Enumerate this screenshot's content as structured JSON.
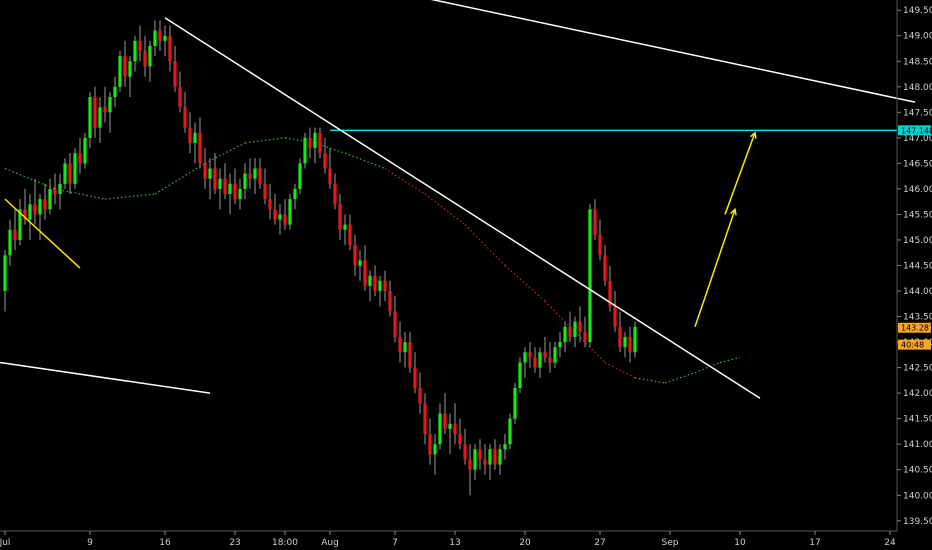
{
  "chart_data": {
    "type": "candlestick",
    "y_ticks": [
      "149.500",
      "149.000",
      "148.500",
      "148.000",
      "147.500",
      "147.000",
      "146.500",
      "146.000",
      "145.500",
      "145.000",
      "144.500",
      "144.000",
      "143.500",
      "143.000",
      "142.500",
      "142.000",
      "141.500",
      "141.000",
      "140.500",
      "140.000",
      "139.500"
    ],
    "y_range": [
      139.3,
      149.7
    ],
    "x_ticks": [
      {
        "label": "Jul",
        "i": 0
      },
      {
        "label": "9",
        "i": 17
      },
      {
        "label": "16",
        "i": 32
      },
      {
        "label": "23",
        "i": 46
      },
      {
        "label": "18:00",
        "i": 56
      },
      {
        "label": "Aug",
        "i": 65
      },
      {
        "label": "7",
        "i": 78
      },
      {
        "label": "13",
        "i": 90
      },
      {
        "label": "20",
        "i": 104
      },
      {
        "label": "27",
        "i": 119
      },
      {
        "label": "Sep",
        "i": 133
      },
      {
        "label": "10",
        "i": 147
      },
      {
        "label": "17",
        "i": 162
      },
      {
        "label": "24",
        "i": 177
      }
    ],
    "candles": [
      [
        144.0,
        144.8,
        143.6,
        144.7
      ],
      [
        144.7,
        145.4,
        144.5,
        145.2
      ],
      [
        145.2,
        145.6,
        144.8,
        145.0
      ],
      [
        145.0,
        145.8,
        144.9,
        145.6
      ],
      [
        145.6,
        146.0,
        145.3,
        145.4
      ],
      [
        145.4,
        145.9,
        145.0,
        145.7
      ],
      [
        145.7,
        146.2,
        145.3,
        145.5
      ],
      [
        145.5,
        145.9,
        145.0,
        145.8
      ],
      [
        145.8,
        146.1,
        145.4,
        145.6
      ],
      [
        145.6,
        146.2,
        145.5,
        146.0
      ],
      [
        146.0,
        146.3,
        145.7,
        145.9
      ],
      [
        145.9,
        146.3,
        145.6,
        146.1
      ],
      [
        146.1,
        146.6,
        146.0,
        146.5
      ],
      [
        146.5,
        146.7,
        145.9,
        146.1
      ],
      [
        146.1,
        146.8,
        146.0,
        146.7
      ],
      [
        146.7,
        147.0,
        146.3,
        146.5
      ],
      [
        146.5,
        147.1,
        146.4,
        147.0
      ],
      [
        147.0,
        147.9,
        146.8,
        147.8
      ],
      [
        147.8,
        148.0,
        147.0,
        147.2
      ],
      [
        147.2,
        147.8,
        146.9,
        147.6
      ],
      [
        147.6,
        148.0,
        147.3,
        147.5
      ],
      [
        147.5,
        147.9,
        147.1,
        147.8
      ],
      [
        147.8,
        148.2,
        147.6,
        148.0
      ],
      [
        148.0,
        148.7,
        147.9,
        148.6
      ],
      [
        148.6,
        148.9,
        148.0,
        148.2
      ],
      [
        148.2,
        148.6,
        147.8,
        148.5
      ],
      [
        148.5,
        149.0,
        148.3,
        148.9
      ],
      [
        148.9,
        149.2,
        148.5,
        148.7
      ],
      [
        148.7,
        149.0,
        148.2,
        148.4
      ],
      [
        148.4,
        148.9,
        148.1,
        148.8
      ],
      [
        148.8,
        149.3,
        148.6,
        149.1
      ],
      [
        149.1,
        149.3,
        148.7,
        148.9
      ],
      [
        148.9,
        149.2,
        148.6,
        149.0
      ],
      [
        149.0,
        149.2,
        148.3,
        148.5
      ],
      [
        148.5,
        148.8,
        147.9,
        148.0
      ],
      [
        148.0,
        148.3,
        147.5,
        147.6
      ],
      [
        147.6,
        147.9,
        147.1,
        147.2
      ],
      [
        147.2,
        147.5,
        146.7,
        146.9
      ],
      [
        146.9,
        147.3,
        146.5,
        147.1
      ],
      [
        147.1,
        147.4,
        146.4,
        146.5
      ],
      [
        146.5,
        146.8,
        146.0,
        146.2
      ],
      [
        146.2,
        146.6,
        145.8,
        146.4
      ],
      [
        146.4,
        146.7,
        145.9,
        146.0
      ],
      [
        146.0,
        146.4,
        145.6,
        146.2
      ],
      [
        146.2,
        146.5,
        145.8,
        145.9
      ],
      [
        145.9,
        146.3,
        145.5,
        146.1
      ],
      [
        146.1,
        146.4,
        145.7,
        145.8
      ],
      [
        145.8,
        146.2,
        145.6,
        146.0
      ],
      [
        146.0,
        146.5,
        145.8,
        146.3
      ],
      [
        146.3,
        146.6,
        146.0,
        146.2
      ],
      [
        146.2,
        146.6,
        145.9,
        146.4
      ],
      [
        146.4,
        146.6,
        146.0,
        146.1
      ],
      [
        146.1,
        146.4,
        145.7,
        145.8
      ],
      [
        145.8,
        146.1,
        145.4,
        145.6
      ],
      [
        145.6,
        145.9,
        145.3,
        145.4
      ],
      [
        145.4,
        145.7,
        145.1,
        145.5
      ],
      [
        145.5,
        145.8,
        145.2,
        145.3
      ],
      [
        145.3,
        145.9,
        145.2,
        145.8
      ],
      [
        145.8,
        146.1,
        145.6,
        146.0
      ],
      [
        146.0,
        146.6,
        145.9,
        146.5
      ],
      [
        146.5,
        147.1,
        146.4,
        147.0
      ],
      [
        147.0,
        147.2,
        146.6,
        146.8
      ],
      [
        146.8,
        147.2,
        146.5,
        147.1
      ],
      [
        147.1,
        147.2,
        146.6,
        146.7
      ],
      [
        146.7,
        147.0,
        146.3,
        146.4
      ],
      [
        146.4,
        146.8,
        146.0,
        146.1
      ],
      [
        146.1,
        146.3,
        145.6,
        145.7
      ],
      [
        145.7,
        145.9,
        145.0,
        145.2
      ],
      [
        145.2,
        145.5,
        144.9,
        145.3
      ],
      [
        145.3,
        145.5,
        144.8,
        144.9
      ],
      [
        144.9,
        145.1,
        144.3,
        144.5
      ],
      [
        144.5,
        144.8,
        144.2,
        144.6
      ],
      [
        144.6,
        144.9,
        144.0,
        144.1
      ],
      [
        144.1,
        144.4,
        143.8,
        144.3
      ],
      [
        144.3,
        144.5,
        143.9,
        144.0
      ],
      [
        144.0,
        144.3,
        143.7,
        144.2
      ],
      [
        144.2,
        144.4,
        143.8,
        144.0
      ],
      [
        144.0,
        144.2,
        143.5,
        143.6
      ],
      [
        143.6,
        143.9,
        143.0,
        143.1
      ],
      [
        143.1,
        143.4,
        142.6,
        142.8
      ],
      [
        142.8,
        143.2,
        142.5,
        143.0
      ],
      [
        143.0,
        143.2,
        142.4,
        142.5
      ],
      [
        142.5,
        142.8,
        142.0,
        142.1
      ],
      [
        142.1,
        142.4,
        141.6,
        141.8
      ],
      [
        141.8,
        142.0,
        141.0,
        141.2
      ],
      [
        141.2,
        141.5,
        140.6,
        140.8
      ],
      [
        140.8,
        141.2,
        140.4,
        141.0
      ],
      [
        141.0,
        141.8,
        140.9,
        141.6
      ],
      [
        141.6,
        142.0,
        141.2,
        141.3
      ],
      [
        141.3,
        141.6,
        140.8,
        141.4
      ],
      [
        141.4,
        141.8,
        141.0,
        141.2
      ],
      [
        141.2,
        141.5,
        140.9,
        141.0
      ],
      [
        141.0,
        141.3,
        140.6,
        140.7
      ],
      [
        140.7,
        141.0,
        140.0,
        140.5
      ],
      [
        140.5,
        141.0,
        140.3,
        140.9
      ],
      [
        140.9,
        141.1,
        140.5,
        140.7
      ],
      [
        140.7,
        141.0,
        140.4,
        140.6
      ],
      [
        140.6,
        141.0,
        140.3,
        140.9
      ],
      [
        140.9,
        141.1,
        140.5,
        140.6
      ],
      [
        140.6,
        141.0,
        140.4,
        140.9
      ],
      [
        140.9,
        141.2,
        140.7,
        141.0
      ],
      [
        141.0,
        141.6,
        140.9,
        141.5
      ],
      [
        141.5,
        142.2,
        141.4,
        142.1
      ],
      [
        142.1,
        142.7,
        142.0,
        142.6
      ],
      [
        142.6,
        142.9,
        142.3,
        142.8
      ],
      [
        142.8,
        143.0,
        142.5,
        142.7
      ],
      [
        142.7,
        142.9,
        142.4,
        142.5
      ],
      [
        142.5,
        142.9,
        142.3,
        142.8
      ],
      [
        142.8,
        143.1,
        142.6,
        142.7
      ],
      [
        142.7,
        143.0,
        142.4,
        142.6
      ],
      [
        142.6,
        143.0,
        142.5,
        142.9
      ],
      [
        142.9,
        143.2,
        142.7,
        143.0
      ],
      [
        143.0,
        143.4,
        142.8,
        143.3
      ],
      [
        143.3,
        143.6,
        143.0,
        143.1
      ],
      [
        143.1,
        143.5,
        142.9,
        143.4
      ],
      [
        143.4,
        143.7,
        143.0,
        143.2
      ],
      [
        143.2,
        143.5,
        142.9,
        143.0
      ],
      [
        143.0,
        145.7,
        142.9,
        145.6
      ],
      [
        145.6,
        145.8,
        145.0,
        145.1
      ],
      [
        145.1,
        145.4,
        144.6,
        144.7
      ],
      [
        144.7,
        144.9,
        144.1,
        144.2
      ],
      [
        144.2,
        144.5,
        143.6,
        143.7
      ],
      [
        143.7,
        144.0,
        143.2,
        143.3
      ],
      [
        143.3,
        143.6,
        142.8,
        142.9
      ],
      [
        142.9,
        143.2,
        142.7,
        143.1
      ],
      [
        143.1,
        143.3,
        142.6,
        142.8
      ],
      [
        142.8,
        143.4,
        142.7,
        143.3
      ]
    ],
    "ma_points": [
      [
        0,
        146.4
      ],
      [
        10,
        146.0
      ],
      [
        20,
        145.8
      ],
      [
        30,
        145.9
      ],
      [
        40,
        146.5
      ],
      [
        48,
        146.9
      ],
      [
        56,
        147.0
      ],
      [
        62,
        146.9
      ],
      [
        68,
        146.7
      ],
      [
        76,
        146.4
      ],
      [
        84,
        145.9
      ],
      [
        92,
        145.3
      ],
      [
        100,
        144.5
      ],
      [
        108,
        143.8
      ],
      [
        114,
        143.2
      ],
      [
        120,
        142.6
      ],
      [
        126,
        142.3
      ],
      [
        132,
        142.2
      ],
      [
        138,
        142.4
      ],
      [
        143,
        142.6
      ],
      [
        147,
        142.7
      ]
    ],
    "ma_break_index": 9,
    "price_tags": [
      {
        "label": "147.148",
        "value": 147.148,
        "color": "#00d0d0"
      },
      {
        "label": "143.281",
        "value": 143.281,
        "color": "#f5a623"
      },
      {
        "label": "40:48",
        "value": 142.95,
        "color": "#f5a623"
      }
    ],
    "hline": {
      "value": 147.148,
      "start_i": 65,
      "color": "#00e5ff"
    },
    "trendlines": [
      {
        "name": "falling-trendline",
        "from": [
          32,
          149.35
        ],
        "to": [
          151,
          141.9
        ],
        "color": "#ffffff"
      },
      {
        "name": "upper-channel-line",
        "from": [
          57,
          150.3
        ],
        "to": [
          182,
          147.7
        ],
        "color": "#ffffff"
      },
      {
        "name": "lower-channel-line",
        "from": [
          -1,
          142.6
        ],
        "to": [
          41,
          142.0
        ],
        "color": "#ffffff"
      },
      {
        "name": "small-yellow-line",
        "from": [
          0,
          145.8
        ],
        "to": [
          15,
          144.45
        ],
        "color": "#ffe600"
      }
    ],
    "arrows": [
      {
        "name": "target-arrow-1",
        "from": [
          138,
          143.3
        ],
        "to": [
          146,
          145.6
        ],
        "color": "#ffe600"
      },
      {
        "name": "target-arrow-2",
        "from": [
          144,
          145.5
        ],
        "to": [
          150,
          147.1
        ],
        "color": "#ffe600"
      }
    ]
  }
}
